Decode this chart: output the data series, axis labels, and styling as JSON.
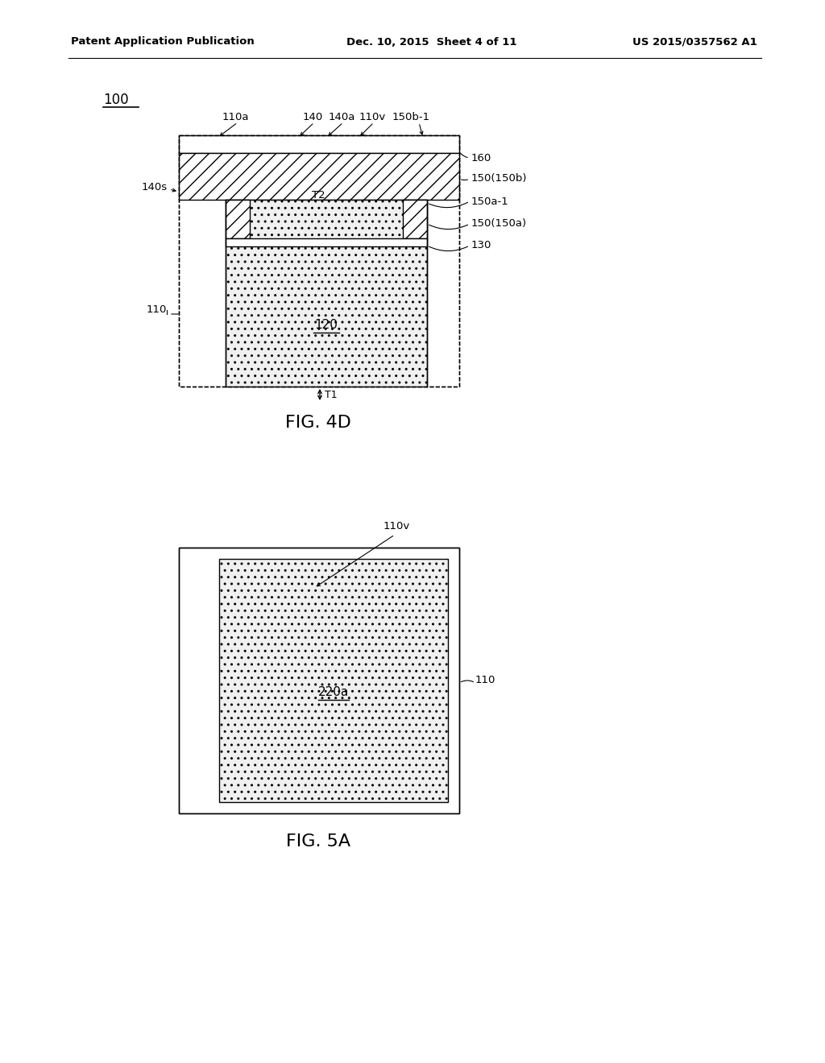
{
  "page_title_left": "Patent Application Publication",
  "page_title_center": "Dec. 10, 2015  Sheet 4 of 11",
  "page_title_right": "US 2015/0357562 A1",
  "fig4d_label": "FIG. 4D",
  "fig5a_label": "FIG. 5A",
  "label_100": "100",
  "label_110": "110",
  "label_110a": "110a",
  "label_110v": "110v",
  "label_120": "120",
  "label_130": "130",
  "label_140": "140",
  "label_140a": "140a",
  "label_140s": "140s",
  "label_150_150b": "150(150b)",
  "label_150a_1": "150a-1",
  "label_150_150a": "150(150a)",
  "label_150b_1": "150b-1",
  "label_160": "160",
  "label_T1": "T1",
  "label_T2": "T2",
  "label_110v_5a": "110v",
  "label_110_5a": "110",
  "label_220a": "220a",
  "background_color": "#ffffff",
  "line_color": "#000000"
}
